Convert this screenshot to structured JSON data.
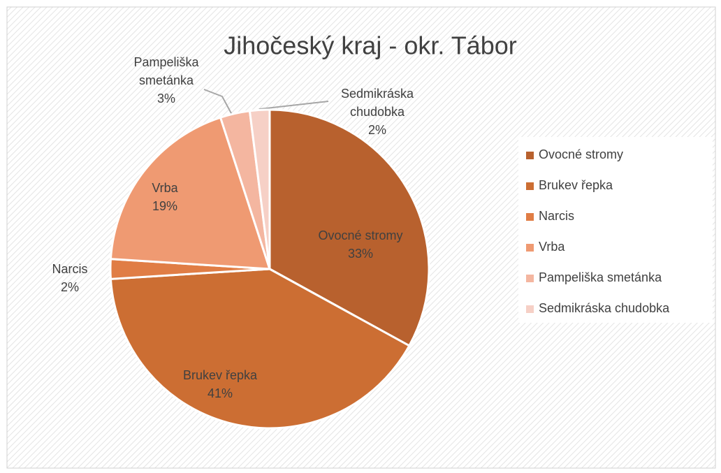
{
  "chart_data": {
    "type": "pie",
    "title": "Jihočeský kraj - okr. Tábor",
    "categories": [
      "Ovocné stromy",
      "Brukev řepka",
      "Narcis",
      "Vrba",
      "Pampeliška smetánka",
      "Sedmikráska chudobka"
    ],
    "values": [
      33,
      41,
      2,
      19,
      3,
      2
    ],
    "value_labels": [
      "33%",
      "41%",
      "2%",
      "19%",
      "3%",
      "2%"
    ],
    "colors": [
      "#b8612e",
      "#cc6e33",
      "#e07d45",
      "#ef9a72",
      "#f4b6a0",
      "#f6d0c6"
    ],
    "legend": "right"
  }
}
